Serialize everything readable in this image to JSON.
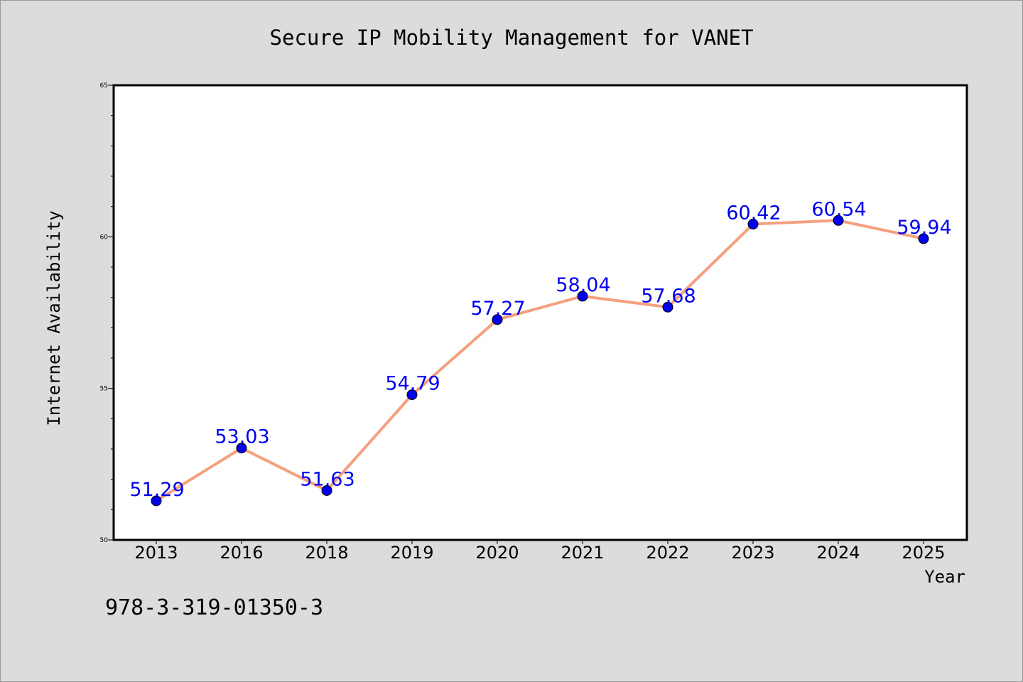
{
  "chart_data": {
    "type": "line",
    "title": "Secure IP Mobility Management for VANET",
    "xlabel": "Year",
    "ylabel": "Internet Availability",
    "categories": [
      "2013",
      "2016",
      "2018",
      "2019",
      "2020",
      "2021",
      "2022",
      "2023",
      "2024",
      "2025"
    ],
    "values": [
      51.29,
      53.03,
      51.63,
      54.79,
      57.27,
      58.04,
      57.68,
      60.42,
      60.54,
      59.94
    ],
    "data_labels": [
      "51.29",
      "53.03",
      "51.63",
      "54.79",
      "57.27",
      "58.04",
      "57.68",
      "60.42",
      "60.54",
      "59.94"
    ],
    "ylim": [
      50,
      65
    ],
    "y_ticks": [
      "50",
      "55",
      "60",
      "65"
    ],
    "y_minor_step": 1,
    "grid": false,
    "line_color": "#f4a07e",
    "marker_color": "#0000ee",
    "label_color": "#0000ee",
    "annotation": "978-3-319-01350-3"
  }
}
